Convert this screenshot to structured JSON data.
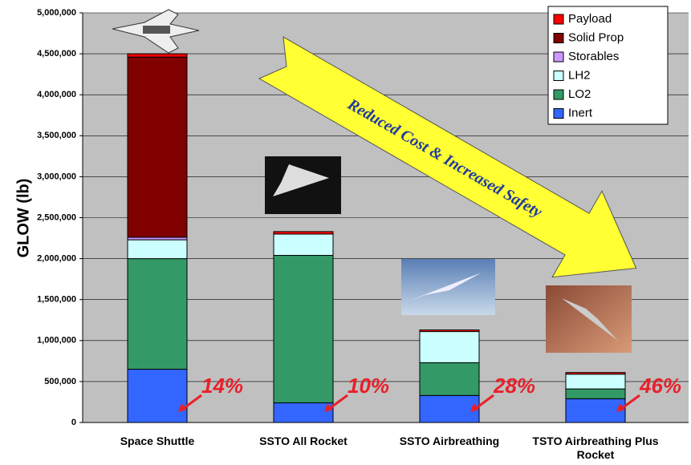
{
  "chart_data": {
    "type": "bar",
    "stacked": true,
    "y_label": "GLOW (lb)",
    "categories": [
      "Space Shuttle",
      "SSTO All Rocket",
      "SSTO Airbreathing",
      "TSTO Airbreathing Plus Rocket"
    ],
    "series": [
      {
        "name": "Inert",
        "color": "#3366ff",
        "values": [
          650000,
          240000,
          330000,
          290000
        ]
      },
      {
        "name": "LO2",
        "color": "#339966",
        "values": [
          1350000,
          1800000,
          400000,
          120000
        ]
      },
      {
        "name": "LH2",
        "color": "#ccffff",
        "values": [
          230000,
          260000,
          380000,
          180000
        ]
      },
      {
        "name": "Storables",
        "color": "#cc99ff",
        "values": [
          30000,
          0,
          0,
          0
        ]
      },
      {
        "name": "Solid Prop",
        "color": "#800000",
        "values": [
          2200000,
          0,
          0,
          0
        ]
      },
      {
        "name": "Payload",
        "color": "#ff0000",
        "values": [
          40000,
          30000,
          20000,
          20000
        ]
      }
    ],
    "ylim": [
      0,
      5000000
    ],
    "yticks": [
      0,
      {
        "value": 500000,
        "label": "500,000"
      },
      {
        "value": 1000000,
        "label": "1,000,000"
      },
      {
        "value": 1500000,
        "label": "1,500,000"
      },
      {
        "value": 2000000,
        "label": "2,000,000"
      },
      {
        "value": 2500000,
        "label": "2,500,000"
      },
      {
        "value": 3000000,
        "label": "3,000,000"
      },
      {
        "value": 3500000,
        "label": "3,500,000"
      },
      {
        "value": 4000000,
        "label": "4,000,000"
      },
      {
        "value": 4500000,
        "label": "4,500,000"
      },
      {
        "value": 5000000,
        "label": "5,000,000"
      }
    ],
    "grid": true,
    "legend": "top-right",
    "percent_labels": [
      "14%",
      "10%",
      "28%",
      "46%"
    ],
    "arrow_text": "Reduced Cost & Increased Safety"
  }
}
